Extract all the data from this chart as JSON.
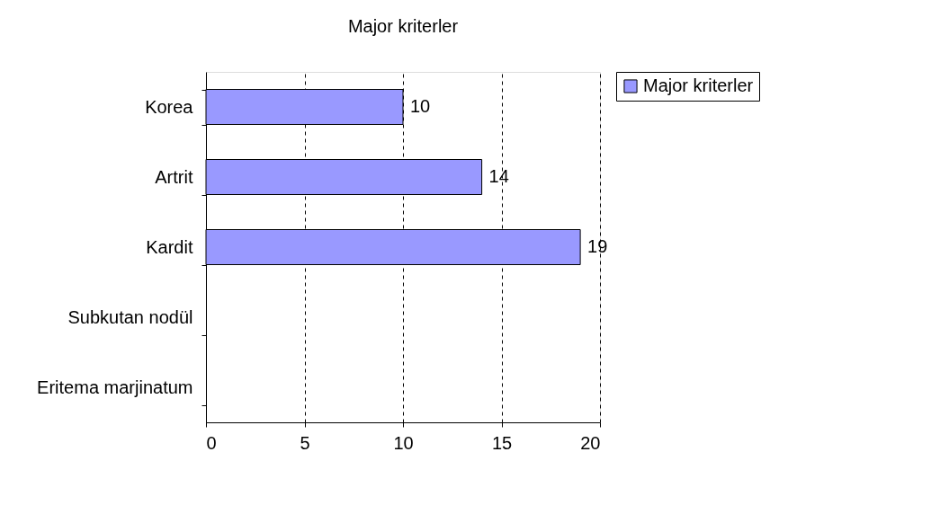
{
  "chart_data": {
    "type": "bar",
    "title": "Major kriterler",
    "orientation": "horizontal",
    "categories": [
      "Korea",
      "Artrit",
      "Kardit",
      "Subkutan nodül",
      "Eritema marjinatum"
    ],
    "series": [
      {
        "name": "Major kriterler",
        "color": "#9999ff",
        "values": [
          10,
          14,
          19,
          null,
          null
        ]
      }
    ],
    "value_labels": [
      "10",
      "14",
      "19",
      null,
      null
    ],
    "xlim": [
      0,
      20
    ],
    "xticks": [
      0,
      5,
      10,
      15,
      20
    ],
    "grid": "x",
    "legend": "right"
  }
}
